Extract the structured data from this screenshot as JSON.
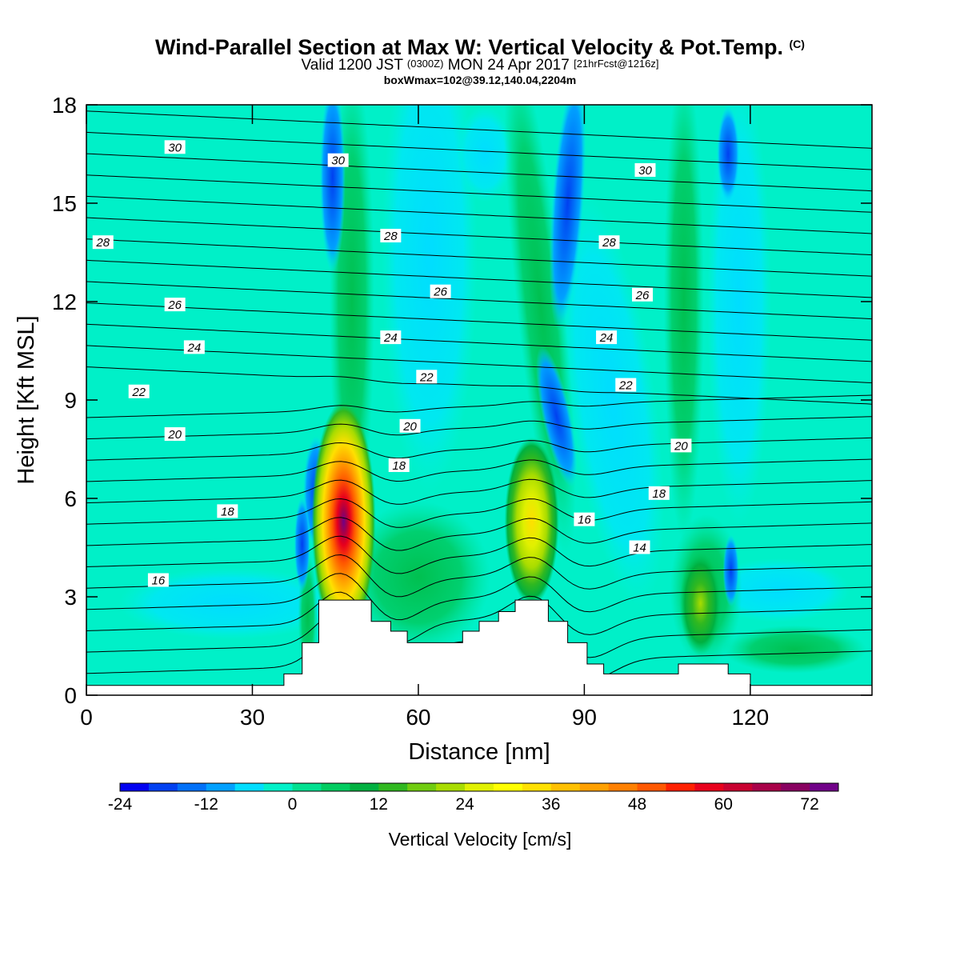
{
  "title": {
    "main": "Wind-Parallel Section at Max W: Vertical Velocity & Pot.Temp.",
    "copyright": "(C)",
    "valid_prefix": "Valid 1200 JST",
    "valid_utc": "(0300Z)",
    "valid_date": "MON 24 Apr 2017",
    "forecast": "[21hrFcst@1216z]",
    "box": "boxWmax=102@39.12,140.04,2204m"
  },
  "chart_data": {
    "type": "heatmap",
    "xlabel": "Distance [nm]",
    "ylabel": "Height [Kft MSL]",
    "xlim": [
      0,
      142
    ],
    "ylim": [
      0,
      18
    ],
    "xticks": [
      0,
      30,
      60,
      90,
      120
    ],
    "yticks": [
      0,
      3,
      6,
      9,
      12,
      15,
      18
    ],
    "colorbar": {
      "label": "Vertical Velocity [cm/s]",
      "min": -24,
      "step": 4,
      "tick_values": [
        "-24",
        "-12",
        "0",
        "12",
        "24",
        "36",
        "48",
        "60",
        "72"
      ],
      "colors": [
        "#0000f0",
        "#0040f0",
        "#0070f8",
        "#00a0ff",
        "#00ddff",
        "#00f0c8",
        "#00e090",
        "#00cc60",
        "#00b040",
        "#30b820",
        "#70cc10",
        "#a8dc00",
        "#e0f000",
        "#ffff00",
        "#ffe000",
        "#ffc000",
        "#ffa000",
        "#ff8000",
        "#ff5800",
        "#ff2000",
        "#e8001c",
        "#c80030",
        "#a80048",
        "#880060",
        "#700088"
      ]
    },
    "terrain_profile_kft": [
      {
        "x": 0,
        "h": 0.3
      },
      {
        "x": 35.7,
        "h": 0.3
      },
      {
        "x": 35.7,
        "h": 0.65
      },
      {
        "x": 39,
        "h": 0.65
      },
      {
        "x": 39,
        "h": 1.6
      },
      {
        "x": 42,
        "h": 1.6
      },
      {
        "x": 42,
        "h": 2.9
      },
      {
        "x": 51.5,
        "h": 2.9
      },
      {
        "x": 51.5,
        "h": 2.25
      },
      {
        "x": 55,
        "h": 2.25
      },
      {
        "x": 55,
        "h": 1.95
      },
      {
        "x": 58,
        "h": 1.95
      },
      {
        "x": 58,
        "h": 1.6
      },
      {
        "x": 68,
        "h": 1.6
      },
      {
        "x": 68,
        "h": 1.95
      },
      {
        "x": 71,
        "h": 1.95
      },
      {
        "x": 71,
        "h": 2.25
      },
      {
        "x": 74.5,
        "h": 2.25
      },
      {
        "x": 74.5,
        "h": 2.55
      },
      {
        "x": 77.5,
        "h": 2.55
      },
      {
        "x": 77.5,
        "h": 2.9
      },
      {
        "x": 83.5,
        "h": 2.9
      },
      {
        "x": 83.5,
        "h": 2.25
      },
      {
        "x": 87,
        "h": 2.25
      },
      {
        "x": 87,
        "h": 1.6
      },
      {
        "x": 90.5,
        "h": 1.6
      },
      {
        "x": 90.5,
        "h": 0.95
      },
      {
        "x": 93.5,
        "h": 0.95
      },
      {
        "x": 93.5,
        "h": 0.65
      },
      {
        "x": 107,
        "h": 0.65
      },
      {
        "x": 107,
        "h": 0.95
      },
      {
        "x": 116,
        "h": 0.95
      },
      {
        "x": 116,
        "h": 0.65
      },
      {
        "x": 120,
        "h": 0.65
      },
      {
        "x": 120,
        "h": 0.3
      },
      {
        "x": 142,
        "h": 0.3
      }
    ],
    "updraft_cores": [
      {
        "x": 46.5,
        "h": 5.3,
        "w_max": 78
      },
      {
        "x": 80.5,
        "h": 5.3,
        "w_max": 32
      },
      {
        "x": 111,
        "h": 2.8,
        "w_max": 24
      }
    ],
    "isentrope_labels": [
      {
        "x": 16,
        "h": 16.7,
        "v": "30"
      },
      {
        "x": 45.5,
        "h": 16.3,
        "v": "30"
      },
      {
        "x": 101,
        "h": 16.0,
        "v": "30"
      },
      {
        "x": 3,
        "h": 13.8,
        "v": "28"
      },
      {
        "x": 55,
        "h": 14.0,
        "v": "28"
      },
      {
        "x": 94.5,
        "h": 13.8,
        "v": "28"
      },
      {
        "x": 64,
        "h": 12.3,
        "v": "26"
      },
      {
        "x": 16,
        "h": 11.9,
        "v": "26"
      },
      {
        "x": 100.5,
        "h": 12.2,
        "v": "26"
      },
      {
        "x": 55,
        "h": 10.9,
        "v": "24"
      },
      {
        "x": 94,
        "h": 10.9,
        "v": "24"
      },
      {
        "x": 19.5,
        "h": 10.6,
        "v": "24"
      },
      {
        "x": 61.5,
        "h": 9.7,
        "v": "22"
      },
      {
        "x": 97.5,
        "h": 9.45,
        "v": "22"
      },
      {
        "x": 9.5,
        "h": 9.25,
        "v": "22"
      },
      {
        "x": 58.5,
        "h": 8.2,
        "v": "20"
      },
      {
        "x": 16,
        "h": 7.95,
        "v": "20"
      },
      {
        "x": 107.5,
        "h": 7.6,
        "v": "20"
      },
      {
        "x": 56.5,
        "h": 7.0,
        "v": "18"
      },
      {
        "x": 25.5,
        "h": 5.6,
        "v": "18"
      },
      {
        "x": 103.5,
        "h": 6.15,
        "v": "18"
      },
      {
        "x": 90,
        "h": 5.35,
        "v": "16"
      },
      {
        "x": 13,
        "h": 3.5,
        "v": "16"
      },
      {
        "x": 100,
        "h": 4.5,
        "v": "14"
      }
    ]
  }
}
